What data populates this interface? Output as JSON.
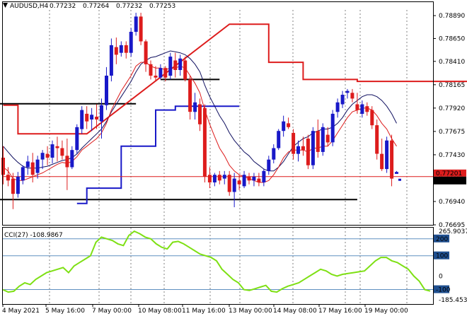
{
  "header": {
    "symbol": "AUDUSD,H4",
    "ohlc": [
      "0.77232",
      "0.77264",
      "0.77232",
      "0.77253"
    ]
  },
  "colors": {
    "bull": "#1818c8",
    "bear": "#dd1c1c",
    "ma_fast": "#dd1c1c",
    "ma_slow": "#101060",
    "resistance": "#dd1c1c",
    "support": "#1818c8",
    "level": "#000000",
    "cci": "#7ee014",
    "cci_level": "#6090c0",
    "price_line": "#dd1c1c",
    "grid": "#b8b8b8"
  },
  "chart_data": [
    {
      "type": "candlestick",
      "title": "",
      "x_labels": [
        "4 May 2021",
        "5 May 16:00",
        "7 May 00:00",
        "10 May 08:00",
        "11 May 16:00",
        "13 May 00:00",
        "14 May 08:00",
        "17 May 16:00",
        "19 May 00:00"
      ],
      "ylim": [
        0.76695,
        0.7895
      ],
      "y_ticks": [
        "0.78890",
        "0.78650",
        "0.78410",
        "0.78165",
        "0.77920",
        "0.77675",
        "0.77430",
        "0.77185",
        "0.76940",
        "0.76695"
      ],
      "grid": true,
      "current_price": "0.77253",
      "price_line_label": "0.77201",
      "price_line_value": 0.77201,
      "candles": [
        {
          "o": 0.774,
          "h": 0.7752,
          "l": 0.7712,
          "c": 0.7722
        },
        {
          "o": 0.7722,
          "h": 0.773,
          "l": 0.771,
          "c": 0.7716
        },
        {
          "o": 0.7718,
          "h": 0.7724,
          "l": 0.7686,
          "c": 0.7702
        },
        {
          "o": 0.7702,
          "h": 0.7725,
          "l": 0.7698,
          "c": 0.772
        },
        {
          "o": 0.7716,
          "h": 0.7732,
          "l": 0.7712,
          "c": 0.773
        },
        {
          "o": 0.773,
          "h": 0.7742,
          "l": 0.7722,
          "c": 0.7736
        },
        {
          "o": 0.7735,
          "h": 0.7745,
          "l": 0.7714,
          "c": 0.7722
        },
        {
          "o": 0.7724,
          "h": 0.7742,
          "l": 0.7718,
          "c": 0.7738
        },
        {
          "o": 0.7738,
          "h": 0.7748,
          "l": 0.7728,
          "c": 0.7745
        },
        {
          "o": 0.7744,
          "h": 0.7752,
          "l": 0.7732,
          "c": 0.774
        },
        {
          "o": 0.774,
          "h": 0.7758,
          "l": 0.7734,
          "c": 0.7754
        },
        {
          "o": 0.7752,
          "h": 0.7762,
          "l": 0.7736,
          "c": 0.775
        },
        {
          "o": 0.775,
          "h": 0.7758,
          "l": 0.7738,
          "c": 0.7742
        },
        {
          "o": 0.7742,
          "h": 0.776,
          "l": 0.7706,
          "c": 0.773
        },
        {
          "o": 0.773,
          "h": 0.7752,
          "l": 0.7728,
          "c": 0.7748
        },
        {
          "o": 0.7748,
          "h": 0.7775,
          "l": 0.7744,
          "c": 0.7772
        },
        {
          "o": 0.777,
          "h": 0.7794,
          "l": 0.7765,
          "c": 0.779
        },
        {
          "o": 0.7786,
          "h": 0.7794,
          "l": 0.777,
          "c": 0.7778
        },
        {
          "o": 0.778,
          "h": 0.7792,
          "l": 0.7768,
          "c": 0.7785
        },
        {
          "o": 0.7783,
          "h": 0.7796,
          "l": 0.777,
          "c": 0.778
        },
        {
          "o": 0.7778,
          "h": 0.7802,
          "l": 0.776,
          "c": 0.7795
        },
        {
          "o": 0.7795,
          "h": 0.7835,
          "l": 0.779,
          "c": 0.7826
        },
        {
          "o": 0.7826,
          "h": 0.7865,
          "l": 0.782,
          "c": 0.7858
        },
        {
          "o": 0.7856,
          "h": 0.7866,
          "l": 0.7838,
          "c": 0.7848
        },
        {
          "o": 0.785,
          "h": 0.7862,
          "l": 0.7846,
          "c": 0.7858
        },
        {
          "o": 0.7858,
          "h": 0.7862,
          "l": 0.7844,
          "c": 0.785
        },
        {
          "o": 0.785,
          "h": 0.7876,
          "l": 0.7846,
          "c": 0.7872
        },
        {
          "o": 0.7872,
          "h": 0.7892,
          "l": 0.7868,
          "c": 0.7888
        },
        {
          "o": 0.7888,
          "h": 0.7892,
          "l": 0.7858,
          "c": 0.7862
        },
        {
          "o": 0.7862,
          "h": 0.7864,
          "l": 0.783,
          "c": 0.7838
        },
        {
          "o": 0.7838,
          "h": 0.7842,
          "l": 0.7822,
          "c": 0.7826
        },
        {
          "o": 0.7826,
          "h": 0.7836,
          "l": 0.782,
          "c": 0.7824
        },
        {
          "o": 0.7824,
          "h": 0.7838,
          "l": 0.7822,
          "c": 0.7834
        },
        {
          "o": 0.7834,
          "h": 0.7836,
          "l": 0.782,
          "c": 0.7824
        },
        {
          "o": 0.7826,
          "h": 0.785,
          "l": 0.7822,
          "c": 0.7846
        },
        {
          "o": 0.7842,
          "h": 0.785,
          "l": 0.7824,
          "c": 0.7832
        },
        {
          "o": 0.7832,
          "h": 0.7848,
          "l": 0.7826,
          "c": 0.7844
        },
        {
          "o": 0.7842,
          "h": 0.7846,
          "l": 0.782,
          "c": 0.7822
        },
        {
          "o": 0.7822,
          "h": 0.7826,
          "l": 0.778,
          "c": 0.7788
        },
        {
          "o": 0.7788,
          "h": 0.7808,
          "l": 0.778,
          "c": 0.7798
        },
        {
          "o": 0.7796,
          "h": 0.7802,
          "l": 0.7768,
          "c": 0.7775
        },
        {
          "o": 0.7792,
          "h": 0.7796,
          "l": 0.7714,
          "c": 0.772
        },
        {
          "o": 0.7722,
          "h": 0.773,
          "l": 0.7708,
          "c": 0.7714
        },
        {
          "o": 0.7714,
          "h": 0.7724,
          "l": 0.771,
          "c": 0.7722
        },
        {
          "o": 0.7722,
          "h": 0.7726,
          "l": 0.7712,
          "c": 0.7716
        },
        {
          "o": 0.7718,
          "h": 0.7726,
          "l": 0.7712,
          "c": 0.7722
        },
        {
          "o": 0.7722,
          "h": 0.7726,
          "l": 0.77,
          "c": 0.7704
        },
        {
          "o": 0.7704,
          "h": 0.7724,
          "l": 0.7688,
          "c": 0.7718
        },
        {
          "o": 0.7716,
          "h": 0.7722,
          "l": 0.7706,
          "c": 0.7712
        },
        {
          "o": 0.771,
          "h": 0.7726,
          "l": 0.7708,
          "c": 0.7722
        },
        {
          "o": 0.772,
          "h": 0.7724,
          "l": 0.7712,
          "c": 0.7716
        },
        {
          "o": 0.7716,
          "h": 0.7724,
          "l": 0.771,
          "c": 0.772
        },
        {
          "o": 0.7718,
          "h": 0.7724,
          "l": 0.771,
          "c": 0.7714
        },
        {
          "o": 0.7714,
          "h": 0.7728,
          "l": 0.771,
          "c": 0.7726
        },
        {
          "o": 0.7726,
          "h": 0.7742,
          "l": 0.7722,
          "c": 0.7738
        },
        {
          "o": 0.7738,
          "h": 0.7754,
          "l": 0.7734,
          "c": 0.775
        },
        {
          "o": 0.775,
          "h": 0.777,
          "l": 0.7748,
          "c": 0.7768
        },
        {
          "o": 0.7768,
          "h": 0.7784,
          "l": 0.7762,
          "c": 0.7778
        },
        {
          "o": 0.7776,
          "h": 0.7782,
          "l": 0.777,
          "c": 0.7772
        },
        {
          "o": 0.7766,
          "h": 0.777,
          "l": 0.7738,
          "c": 0.7744
        },
        {
          "o": 0.7744,
          "h": 0.7758,
          "l": 0.7736,
          "c": 0.7752
        },
        {
          "o": 0.7752,
          "h": 0.7762,
          "l": 0.7742,
          "c": 0.7748
        },
        {
          "o": 0.776,
          "h": 0.7764,
          "l": 0.7728,
          "c": 0.7732
        },
        {
          "o": 0.7732,
          "h": 0.7772,
          "l": 0.7728,
          "c": 0.7768
        },
        {
          "o": 0.7768,
          "h": 0.778,
          "l": 0.774,
          "c": 0.7746
        },
        {
          "o": 0.7746,
          "h": 0.7776,
          "l": 0.7742,
          "c": 0.7772
        },
        {
          "o": 0.7764,
          "h": 0.7772,
          "l": 0.7752,
          "c": 0.7756
        },
        {
          "o": 0.7756,
          "h": 0.779,
          "l": 0.7752,
          "c": 0.7786
        },
        {
          "o": 0.7788,
          "h": 0.7802,
          "l": 0.7782,
          "c": 0.7798
        },
        {
          "o": 0.7796,
          "h": 0.781,
          "l": 0.7792,
          "c": 0.7806
        },
        {
          "o": 0.7808,
          "h": 0.7812,
          "l": 0.7802,
          "c": 0.781
        },
        {
          "o": 0.7808,
          "h": 0.7812,
          "l": 0.7798,
          "c": 0.7802
        },
        {
          "o": 0.7796,
          "h": 0.7808,
          "l": 0.7786,
          "c": 0.779
        },
        {
          "o": 0.7786,
          "h": 0.78,
          "l": 0.7782,
          "c": 0.7796
        },
        {
          "o": 0.7794,
          "h": 0.7798,
          "l": 0.7784,
          "c": 0.7788
        },
        {
          "o": 0.779,
          "h": 0.7794,
          "l": 0.777,
          "c": 0.7774
        },
        {
          "o": 0.7774,
          "h": 0.778,
          "l": 0.7738,
          "c": 0.7744
        },
        {
          "o": 0.7744,
          "h": 0.776,
          "l": 0.7726,
          "c": 0.7728
        },
        {
          "o": 0.7728,
          "h": 0.7762,
          "l": 0.7724,
          "c": 0.7758
        },
        {
          "o": 0.7758,
          "h": 0.7764,
          "l": 0.771,
          "c": 0.7718
        },
        {
          "o": 0.7723,
          "h": 0.7726,
          "l": 0.7723,
          "c": 0.7725
        }
      ],
      "ma_fast": [
        0.773,
        0.7726,
        0.7718,
        0.7716,
        0.7716,
        0.7718,
        0.772,
        0.7722,
        0.7724,
        0.7727,
        0.773,
        0.7733,
        0.7735,
        0.7734,
        0.7736,
        0.7741,
        0.7748,
        0.7752,
        0.7756,
        0.776,
        0.7766,
        0.7776,
        0.779,
        0.78,
        0.781,
        0.7818,
        0.7826,
        0.7836,
        0.784,
        0.784,
        0.7836,
        0.7834,
        0.7834,
        0.7832,
        0.7834,
        0.7834,
        0.7836,
        0.7834,
        0.7826,
        0.7818,
        0.7808,
        0.779,
        0.7775,
        0.7762,
        0.775,
        0.7742,
        0.7732,
        0.7726,
        0.7722,
        0.772,
        0.7718,
        0.7716,
        0.7714,
        0.7714,
        0.7716,
        0.7722,
        0.773,
        0.774,
        0.7746,
        0.7748,
        0.7748,
        0.7748,
        0.7746,
        0.775,
        0.775,
        0.7752,
        0.7752,
        0.7758,
        0.7766,
        0.7774,
        0.7782,
        0.7788,
        0.779,
        0.7792,
        0.7792,
        0.779,
        0.7784,
        0.7776,
        0.777,
        0.776,
        0.7752
      ],
      "ma_slow": [
        0.7752,
        0.7746,
        0.774,
        0.7735,
        0.7731,
        0.7729,
        0.7729,
        0.7729,
        0.773,
        0.7731,
        0.7733,
        0.7735,
        0.7737,
        0.7738,
        0.774,
        0.7744,
        0.775,
        0.7755,
        0.776,
        0.7765,
        0.777,
        0.7778,
        0.7788,
        0.7796,
        0.7804,
        0.7812,
        0.782,
        0.783,
        0.7838,
        0.7842,
        0.7845,
        0.7846,
        0.7848,
        0.785,
        0.7852,
        0.7851,
        0.785,
        0.7848,
        0.7844,
        0.7838,
        0.783,
        0.7816,
        0.7804,
        0.7794,
        0.7784,
        0.7776,
        0.7766,
        0.7758,
        0.7752,
        0.7746,
        0.7742,
        0.7736,
        0.7732,
        0.7728,
        0.7726,
        0.7726,
        0.773,
        0.7736,
        0.7744,
        0.7752,
        0.7756,
        0.776,
        0.7762,
        0.7766,
        0.7768,
        0.777,
        0.777,
        0.7772,
        0.7776,
        0.7782,
        0.779,
        0.7796,
        0.78,
        0.7804,
        0.7806,
        0.7806,
        0.7804,
        0.78,
        0.7794,
        0.7786,
        0.7776
      ],
      "resistance": [
        {
          "from": 0,
          "to": 3,
          "y": 0.7795
        },
        {
          "from": 3,
          "to": 17,
          "y": 0.7765
        },
        {
          "from": 46,
          "to": 54,
          "y": 0.788
        },
        {
          "from": 54,
          "to": 61,
          "y": 0.784
        },
        {
          "from": 61,
          "to": 72,
          "y": 0.7822
        },
        {
          "from": 72,
          "to": 115,
          "y": 0.782
        },
        {
          "from": 115,
          "to": 140,
          "y": 0.7812
        },
        {
          "from": 140,
          "to": 148,
          "y": 0.781
        }
      ],
      "support": [
        {
          "from": 15,
          "to": 17,
          "y": 0.7692
        },
        {
          "from": 17,
          "to": 24,
          "y": 0.7708
        },
        {
          "from": 24,
          "to": 31,
          "y": 0.7752
        },
        {
          "from": 31,
          "to": 35,
          "y": 0.779
        },
        {
          "from": 35,
          "to": 48,
          "y": 0.7794
        }
      ],
      "levels": [
        {
          "x1": -2,
          "x2": 27,
          "y": 0.77965
        },
        {
          "x1": 32,
          "x2": 44,
          "y": 0.7822
        },
        {
          "x1": -2,
          "x2": 72,
          "y": 0.7696
        }
      ]
    },
    {
      "type": "line",
      "title": "CCI(27) -108.9867",
      "ylim": [
        -185.4538,
        265.9037
      ],
      "y_ticks": [
        "265.9037",
        "200",
        "100",
        "0",
        "-100",
        "-185.4538"
      ],
      "levels": [
        200,
        100,
        -100
      ],
      "current_value": "-108.9867",
      "values": [
        -100,
        -115,
        -110,
        -80,
        -60,
        -70,
        -40,
        -20,
        0,
        10,
        20,
        30,
        0,
        40,
        60,
        80,
        100,
        180,
        210,
        200,
        190,
        170,
        160,
        220,
        245,
        230,
        210,
        200,
        170,
        150,
        140,
        180,
        185,
        170,
        150,
        130,
        110,
        100,
        90,
        70,
        20,
        -10,
        -40,
        -60,
        -100,
        -105,
        -95,
        -85,
        -75,
        -110,
        -115,
        -95,
        -80,
        -70,
        -60,
        -40,
        -20,
        0,
        20,
        10,
        -10,
        -20,
        -10,
        -5,
        0,
        5,
        10,
        40,
        70,
        90,
        90,
        70,
        60,
        40,
        20,
        -20,
        -50,
        -100,
        -109
      ]
    }
  ]
}
